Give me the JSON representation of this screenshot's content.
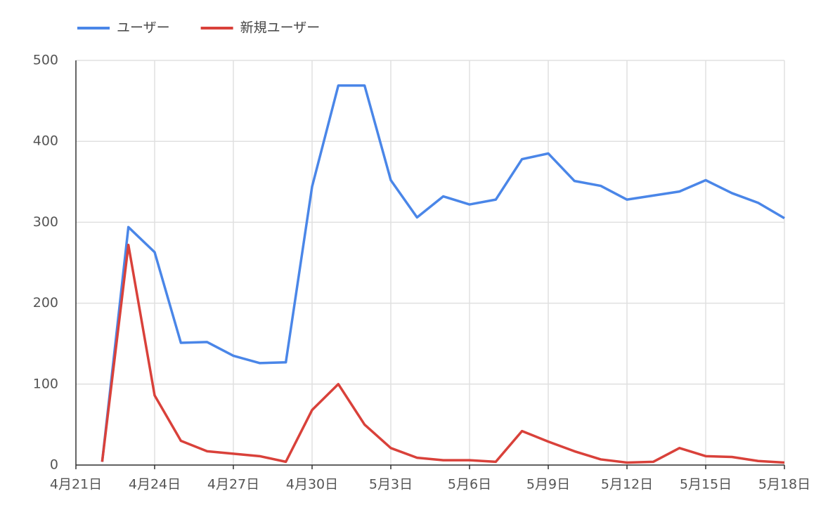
{
  "chart_data": {
    "type": "line",
    "categories": [
      "4月21日",
      null,
      null,
      "4月24日",
      null,
      null,
      "4月27日",
      null,
      null,
      "4月30日",
      null,
      null,
      "5月3日",
      null,
      null,
      "5月6日",
      null,
      null,
      "5月9日",
      null,
      null,
      "5月12日",
      null,
      null,
      "5月15日",
      null,
      null,
      "5月18日"
    ],
    "series": [
      {
        "name": "ユーザー",
        "color": "#4a86e8",
        "values": [
          null,
          4,
          294,
          263,
          151,
          152,
          135,
          126,
          127,
          344,
          469,
          469,
          352,
          306,
          332,
          322,
          328,
          378,
          385,
          351,
          345,
          328,
          333,
          338,
          352,
          336,
          324,
          305
        ]
      },
      {
        "name": "新規ユーザー",
        "color": "#d9413a",
        "values": [
          null,
          4,
          272,
          86,
          30,
          17,
          14,
          11,
          4,
          68,
          100,
          50,
          21,
          9,
          6,
          6,
          4,
          42,
          29,
          17,
          7,
          3,
          4,
          21,
          11,
          10,
          5,
          3
        ]
      }
    ],
    "ylim": [
      0,
      500
    ],
    "yticks": [
      0,
      100,
      200,
      300,
      400,
      500
    ],
    "grid": true,
    "legend": "top"
  }
}
